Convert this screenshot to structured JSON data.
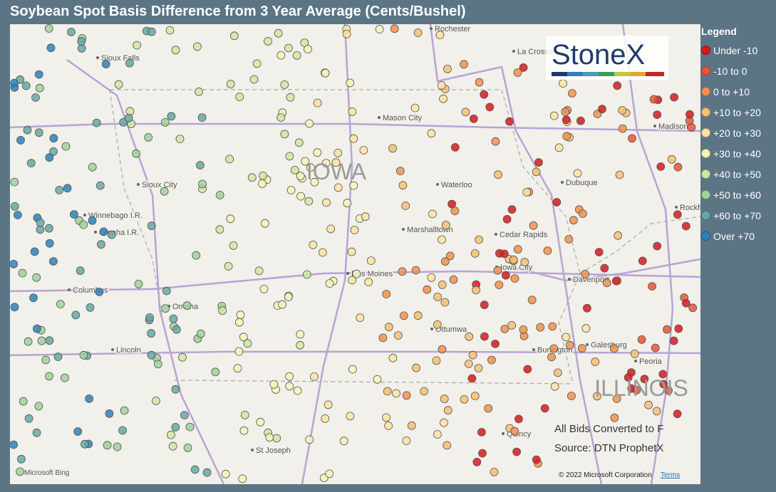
{
  "header": {
    "title": "Soybean Spot Basis Difference from 3 Year Average (Cents/Bushel)"
  },
  "legend": {
    "title": "Legend",
    "items": [
      {
        "label": "Under -10",
        "color": "#d7191c"
      },
      {
        "label": "-10 to 0",
        "color": "#e8553a"
      },
      {
        "label": "0 to +10",
        "color": "#f0914e"
      },
      {
        "label": "+10 to +20",
        "color": "#f7bf72"
      },
      {
        "label": "+20 to +30",
        "color": "#fbe3a0"
      },
      {
        "label": "+30 to +40",
        "color": "#f4f5b9"
      },
      {
        "label": "+40 to +50",
        "color": "#cfe8a0"
      },
      {
        "label": "+50 to +60",
        "color": "#9fd29a"
      },
      {
        "label": "+60 to +70",
        "color": "#66a8a6"
      },
      {
        "label": "Over +70",
        "color": "#2b83ba"
      }
    ]
  },
  "map": {
    "states": [
      "IOWA",
      "ILLINOIS"
    ],
    "cities": [
      "Rochester",
      "La Crosse",
      "Sioux Falls",
      "Mason City",
      "Madison",
      "Sioux City",
      "Waterloo",
      "Dubuque",
      "Rockford",
      "Winnebago I.R.",
      "Omaha I.R.",
      "Marshalltown",
      "Cedar Rapids",
      "Iowa City",
      "Des Moines",
      "Davenport",
      "Columbus",
      "Omaha",
      "Ottumwa",
      "Galesburg",
      "Lincoln",
      "Burlington",
      "Peoria",
      "St Joseph",
      "Quincy"
    ],
    "logo": "StoneX",
    "notes": [
      "All Bids Converted to F",
      "Source: DTN ProphetX"
    ],
    "attribution": {
      "provider": "Microsoft Bing",
      "copyright": "© 2022 Microsoft Corporation",
      "terms": "Terms"
    }
  }
}
